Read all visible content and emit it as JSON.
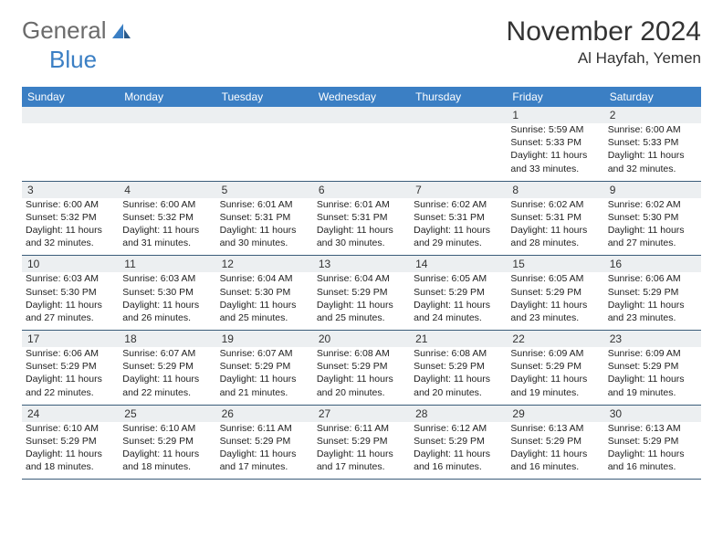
{
  "brand": {
    "part1": "General",
    "part2": "Blue"
  },
  "title": "November 2024",
  "location": "Al Hayfah, Yemen",
  "colors": {
    "header_bg": "#3b7fc4",
    "header_fg": "#ffffff",
    "daynum_bg": "#eceff1",
    "rule": "#3b5d7a",
    "logo_gray": "#6b6b6b",
    "logo_blue": "#3b7fc4"
  },
  "day_names": [
    "Sunday",
    "Monday",
    "Tuesday",
    "Wednesday",
    "Thursday",
    "Friday",
    "Saturday"
  ],
  "weeks": [
    [
      null,
      null,
      null,
      null,
      null,
      {
        "n": "1",
        "sr": "Sunrise: 5:59 AM",
        "ss": "Sunset: 5:33 PM",
        "d1": "Daylight: 11 hours",
        "d2": "and 33 minutes."
      },
      {
        "n": "2",
        "sr": "Sunrise: 6:00 AM",
        "ss": "Sunset: 5:33 PM",
        "d1": "Daylight: 11 hours",
        "d2": "and 32 minutes."
      }
    ],
    [
      {
        "n": "3",
        "sr": "Sunrise: 6:00 AM",
        "ss": "Sunset: 5:32 PM",
        "d1": "Daylight: 11 hours",
        "d2": "and 32 minutes."
      },
      {
        "n": "4",
        "sr": "Sunrise: 6:00 AM",
        "ss": "Sunset: 5:32 PM",
        "d1": "Daylight: 11 hours",
        "d2": "and 31 minutes."
      },
      {
        "n": "5",
        "sr": "Sunrise: 6:01 AM",
        "ss": "Sunset: 5:31 PM",
        "d1": "Daylight: 11 hours",
        "d2": "and 30 minutes."
      },
      {
        "n": "6",
        "sr": "Sunrise: 6:01 AM",
        "ss": "Sunset: 5:31 PM",
        "d1": "Daylight: 11 hours",
        "d2": "and 30 minutes."
      },
      {
        "n": "7",
        "sr": "Sunrise: 6:02 AM",
        "ss": "Sunset: 5:31 PM",
        "d1": "Daylight: 11 hours",
        "d2": "and 29 minutes."
      },
      {
        "n": "8",
        "sr": "Sunrise: 6:02 AM",
        "ss": "Sunset: 5:31 PM",
        "d1": "Daylight: 11 hours",
        "d2": "and 28 minutes."
      },
      {
        "n": "9",
        "sr": "Sunrise: 6:02 AM",
        "ss": "Sunset: 5:30 PM",
        "d1": "Daylight: 11 hours",
        "d2": "and 27 minutes."
      }
    ],
    [
      {
        "n": "10",
        "sr": "Sunrise: 6:03 AM",
        "ss": "Sunset: 5:30 PM",
        "d1": "Daylight: 11 hours",
        "d2": "and 27 minutes."
      },
      {
        "n": "11",
        "sr": "Sunrise: 6:03 AM",
        "ss": "Sunset: 5:30 PM",
        "d1": "Daylight: 11 hours",
        "d2": "and 26 minutes."
      },
      {
        "n": "12",
        "sr": "Sunrise: 6:04 AM",
        "ss": "Sunset: 5:30 PM",
        "d1": "Daylight: 11 hours",
        "d2": "and 25 minutes."
      },
      {
        "n": "13",
        "sr": "Sunrise: 6:04 AM",
        "ss": "Sunset: 5:29 PM",
        "d1": "Daylight: 11 hours",
        "d2": "and 25 minutes."
      },
      {
        "n": "14",
        "sr": "Sunrise: 6:05 AM",
        "ss": "Sunset: 5:29 PM",
        "d1": "Daylight: 11 hours",
        "d2": "and 24 minutes."
      },
      {
        "n": "15",
        "sr": "Sunrise: 6:05 AM",
        "ss": "Sunset: 5:29 PM",
        "d1": "Daylight: 11 hours",
        "d2": "and 23 minutes."
      },
      {
        "n": "16",
        "sr": "Sunrise: 6:06 AM",
        "ss": "Sunset: 5:29 PM",
        "d1": "Daylight: 11 hours",
        "d2": "and 23 minutes."
      }
    ],
    [
      {
        "n": "17",
        "sr": "Sunrise: 6:06 AM",
        "ss": "Sunset: 5:29 PM",
        "d1": "Daylight: 11 hours",
        "d2": "and 22 minutes."
      },
      {
        "n": "18",
        "sr": "Sunrise: 6:07 AM",
        "ss": "Sunset: 5:29 PM",
        "d1": "Daylight: 11 hours",
        "d2": "and 22 minutes."
      },
      {
        "n": "19",
        "sr": "Sunrise: 6:07 AM",
        "ss": "Sunset: 5:29 PM",
        "d1": "Daylight: 11 hours",
        "d2": "and 21 minutes."
      },
      {
        "n": "20",
        "sr": "Sunrise: 6:08 AM",
        "ss": "Sunset: 5:29 PM",
        "d1": "Daylight: 11 hours",
        "d2": "and 20 minutes."
      },
      {
        "n": "21",
        "sr": "Sunrise: 6:08 AM",
        "ss": "Sunset: 5:29 PM",
        "d1": "Daylight: 11 hours",
        "d2": "and 20 minutes."
      },
      {
        "n": "22",
        "sr": "Sunrise: 6:09 AM",
        "ss": "Sunset: 5:29 PM",
        "d1": "Daylight: 11 hours",
        "d2": "and 19 minutes."
      },
      {
        "n": "23",
        "sr": "Sunrise: 6:09 AM",
        "ss": "Sunset: 5:29 PM",
        "d1": "Daylight: 11 hours",
        "d2": "and 19 minutes."
      }
    ],
    [
      {
        "n": "24",
        "sr": "Sunrise: 6:10 AM",
        "ss": "Sunset: 5:29 PM",
        "d1": "Daylight: 11 hours",
        "d2": "and 18 minutes."
      },
      {
        "n": "25",
        "sr": "Sunrise: 6:10 AM",
        "ss": "Sunset: 5:29 PM",
        "d1": "Daylight: 11 hours",
        "d2": "and 18 minutes."
      },
      {
        "n": "26",
        "sr": "Sunrise: 6:11 AM",
        "ss": "Sunset: 5:29 PM",
        "d1": "Daylight: 11 hours",
        "d2": "and 17 minutes."
      },
      {
        "n": "27",
        "sr": "Sunrise: 6:11 AM",
        "ss": "Sunset: 5:29 PM",
        "d1": "Daylight: 11 hours",
        "d2": "and 17 minutes."
      },
      {
        "n": "28",
        "sr": "Sunrise: 6:12 AM",
        "ss": "Sunset: 5:29 PM",
        "d1": "Daylight: 11 hours",
        "d2": "and 16 minutes."
      },
      {
        "n": "29",
        "sr": "Sunrise: 6:13 AM",
        "ss": "Sunset: 5:29 PM",
        "d1": "Daylight: 11 hours",
        "d2": "and 16 minutes."
      },
      {
        "n": "30",
        "sr": "Sunrise: 6:13 AM",
        "ss": "Sunset: 5:29 PM",
        "d1": "Daylight: 11 hours",
        "d2": "and 16 minutes."
      }
    ]
  ]
}
